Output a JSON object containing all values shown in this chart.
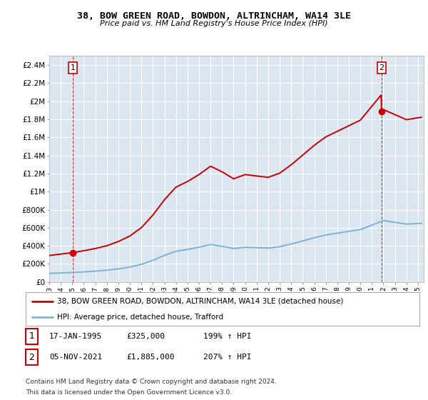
{
  "title": "38, BOW GREEN ROAD, BOWDON, ALTRINCHAM, WA14 3LE",
  "subtitle": "Price paid vs. HM Land Registry's House Price Index (HPI)",
  "ylim": [
    0,
    2500000
  ],
  "yticks": [
    0,
    200000,
    400000,
    600000,
    800000,
    1000000,
    1200000,
    1400000,
    1600000,
    1800000,
    2000000,
    2200000,
    2400000
  ],
  "ytick_labels": [
    "£0",
    "£200K",
    "£400K",
    "£600K",
    "£800K",
    "£1M",
    "£1.2M",
    "£1.4M",
    "£1.6M",
    "£1.8M",
    "£2M",
    "£2.2M",
    "£2.4M"
  ],
  "plot_bg_color": "#dce6f1",
  "grid_color": "#ffffff",
  "hpi_color": "#7ab4d4",
  "price_color": "#cc0000",
  "fig_bg_color": "#ffffff",
  "legend_line1": "38, BOW GREEN ROAD, BOWDON, ALTRINCHAM, WA14 3LE (detached house)",
  "legend_line2": "HPI: Average price, detached house, Trafford",
  "table_row1": [
    "1",
    "17-JAN-1995",
    "£325,000",
    "199% ↑ HPI"
  ],
  "table_row2": [
    "2",
    "05-NOV-2021",
    "£1,885,000",
    "207% ↑ HPI"
  ],
  "footnote1": "Contains HM Land Registry data © Crown copyright and database right 2024.",
  "footnote2": "This data is licensed under the Open Government Licence v3.0.",
  "xlim_start": 1993.0,
  "xlim_end": 2025.5,
  "marker1_x": 1995.04,
  "marker1_y": 325000,
  "marker2_x": 2021.84,
  "marker2_y": 1885000,
  "hpi_years": [
    1993.0,
    1994.0,
    1995.0,
    1996.0,
    1997.0,
    1998.0,
    1999.0,
    2000.0,
    2001.0,
    2002.0,
    2003.0,
    2004.0,
    2005.0,
    2006.0,
    2007.0,
    2008.0,
    2009.0,
    2010.0,
    2011.0,
    2012.0,
    2013.0,
    2014.0,
    2015.0,
    2016.0,
    2017.0,
    2018.0,
    2019.0,
    2020.0,
    2021.0,
    2022.0,
    2023.0,
    2024.0,
    2025.3
  ],
  "hpi_vals": [
    95000,
    100000,
    105000,
    112000,
    120000,
    130000,
    145000,
    165000,
    195000,
    240000,
    295000,
    340000,
    360000,
    385000,
    415000,
    395000,
    370000,
    385000,
    380000,
    375000,
    390000,
    420000,
    455000,
    490000,
    520000,
    540000,
    560000,
    580000,
    630000,
    680000,
    660000,
    640000,
    650000
  ]
}
